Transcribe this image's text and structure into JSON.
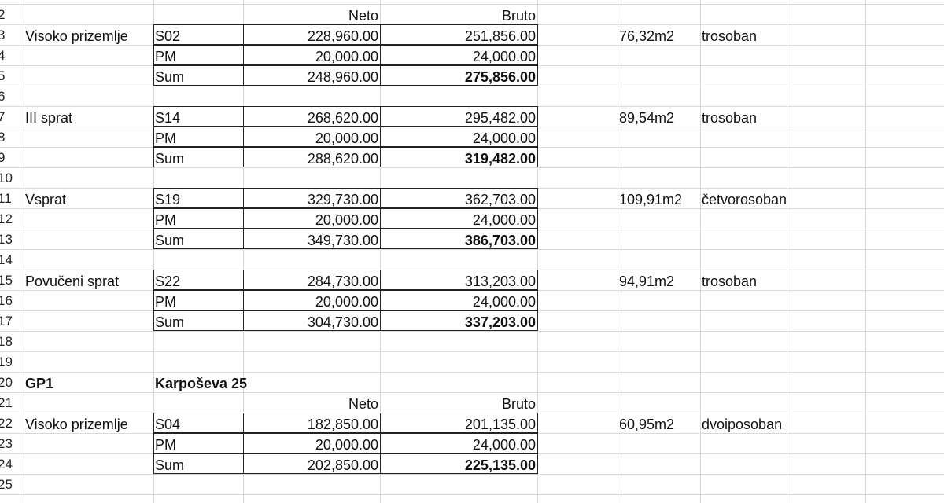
{
  "sheet": {
    "bold": [
      "D"
    ],
    "right": [
      "C",
      "D"
    ],
    "rows": [
      {
        "row": "2",
        "C": "Neto",
        "D": "Bruto"
      },
      {
        "row": "3",
        "A": "Visoko prizemlje",
        "B": "S02",
        "C": "228,960.00",
        "D": "251,856.00",
        "F": "76,32m2",
        "G": "trosoban",
        "boxed": true
      },
      {
        "row": "4",
        "B": "PM",
        "C": "20,000.00",
        "D": "24,000.00",
        "boxed": true
      },
      {
        "row": "5",
        "B": "Sum",
        "C": "248,960.00",
        "D": "275,856.00",
        "boxed": true,
        "strong": true
      },
      {
        "row": "6"
      },
      {
        "row": "7",
        "A": "III sprat",
        "B": "S14",
        "C": "268,620.00",
        "D": "295,482.00",
        "F": "89,54m2",
        "G": "trosoban",
        "boxed": true
      },
      {
        "row": "8",
        "B": "PM",
        "C": "20,000.00",
        "D": "24,000.00",
        "boxed": true
      },
      {
        "row": "9",
        "B": "Sum",
        "C": "288,620.00",
        "D": "319,482.00",
        "boxed": true,
        "strong": true
      },
      {
        "row": "10"
      },
      {
        "row": "11",
        "A": "Vsprat",
        "B": "S19",
        "C": "329,730.00",
        "D": "362,703.00",
        "F": "109,91m2",
        "G": "četvorosoban",
        "boxed": true
      },
      {
        "row": "12",
        "B": "PM",
        "C": "20,000.00",
        "D": "24,000.00",
        "boxed": true
      },
      {
        "row": "13",
        "B": "Sum",
        "C": "349,730.00",
        "D": "386,703.00",
        "boxed": true,
        "strong": true
      },
      {
        "row": "14"
      },
      {
        "row": "15",
        "A": "Povučeni sprat",
        "B": "S22",
        "C": "284,730.00",
        "D": "313,203.00",
        "F": "94,91m2",
        "G": "trosoban",
        "boxed": true
      },
      {
        "row": "16",
        "B": "PM",
        "C": "20,000.00",
        "D": "24,000.00",
        "boxed": true
      },
      {
        "row": "17",
        "B": "Sum",
        "C": "304,730.00",
        "D": "337,203.00",
        "boxed": true,
        "strong": true
      },
      {
        "row": "18"
      },
      {
        "row": "19"
      },
      {
        "row": "20",
        "A": "GP1",
        "B": "Karpoševa 25",
        "heading": true
      },
      {
        "row": "21",
        "C": "Neto",
        "D": "Bruto"
      },
      {
        "row": "22",
        "A": "Visoko prizemlje",
        "B": "S04",
        "C": "182,850.00",
        "D": "201,135.00",
        "F": "60,95m2",
        "G": "dvoiposoban",
        "boxed": true
      },
      {
        "row": "23",
        "B": "PM",
        "C": "20,000.00",
        "D": "24,000.00",
        "boxed": true
      },
      {
        "row": "24",
        "B": "Sum",
        "C": "202,850.00",
        "D": "225,135.00",
        "boxed": true,
        "strong": true
      },
      {
        "row": "25"
      }
    ]
  }
}
